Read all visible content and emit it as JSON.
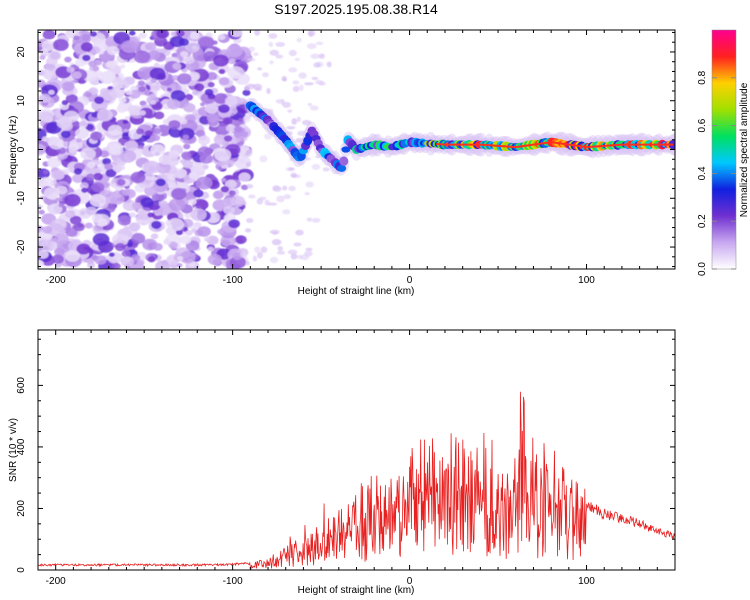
{
  "title": "S197.2025.195.08.38.R14",
  "chart_data": [
    {
      "type": "heatmap",
      "xlabel": "Height of straight line (km)",
      "ylabel": "Frequency (Hz)",
      "xlim": [
        -210,
        150
      ],
      "ylim": [
        -24.5,
        24.5
      ],
      "xticks": [
        -200,
        -100,
        0,
        100
      ],
      "yticks": [
        -20,
        -10,
        0,
        10,
        20
      ],
      "colorbar": {
        "label": "Normalized spectral amplitude",
        "range": [
          0,
          1
        ],
        "ticks": [
          "0.0",
          "0.2",
          "0.4",
          "0.6",
          "0.8"
        ],
        "colors": [
          "#ffffff",
          "#c8a8f0",
          "#7030d0",
          "#1020e0",
          "#00c8ff",
          "#00e060",
          "#a0e000",
          "#ffd000",
          "#ff2020",
          "#ff0090"
        ]
      },
      "features": [
        {
          "name": "noise",
          "x_range": [
            -210,
            -95
          ],
          "freq_range": [
            -24,
            24
          ]
        },
        {
          "name": "track",
          "points": [
            [
              -90,
              9
            ],
            [
              -80,
              6
            ],
            [
              -70,
              2
            ],
            [
              -62,
              -2
            ],
            [
              -55,
              4
            ],
            [
              -50,
              0
            ],
            [
              -44,
              -2
            ],
            [
              -38,
              -4
            ],
            [
              -35,
              2
            ],
            [
              -30,
              0
            ],
            [
              -20,
              1
            ],
            [
              -10,
              0.5
            ],
            [
              0,
              1.5
            ],
            [
              20,
              1
            ],
            [
              40,
              1
            ],
            [
              60,
              0.5
            ],
            [
              80,
              1.5
            ],
            [
              100,
              0.5
            ],
            [
              120,
              1
            ],
            [
              150,
              1
            ]
          ]
        }
      ]
    },
    {
      "type": "line",
      "xlabel": "Height of straight line (km)",
      "ylabel": "SNR (10 * v/v)",
      "xlim": [
        -210,
        150
      ],
      "ylim": [
        0,
        780
      ],
      "xticks": [
        -200,
        -100,
        0,
        100
      ],
      "yticks": [
        0,
        200,
        400,
        600
      ],
      "series": [
        {
          "color": "#e82020",
          "envelope": [
            [
              -210,
              20
            ],
            [
              -160,
              20
            ],
            [
              -110,
              20
            ],
            [
              -90,
              25
            ],
            [
              -80,
              40
            ],
            [
              -70,
              80
            ],
            [
              -60,
              120
            ],
            [
              -50,
              170
            ],
            [
              -40,
              210
            ],
            [
              -30,
              250
            ],
            [
              -20,
              280
            ],
            [
              -10,
              310
            ],
            [
              0,
              330
            ],
            [
              10,
              360
            ],
            [
              20,
              390
            ],
            [
              30,
              400
            ],
            [
              40,
              380
            ],
            [
              50,
              320
            ],
            [
              55,
              250
            ],
            [
              60,
              330
            ],
            [
              63,
              600
            ],
            [
              66,
              420
            ],
            [
              70,
              350
            ],
            [
              80,
              360
            ],
            [
              90,
              330
            ],
            [
              100,
              230
            ],
            [
              110,
              200
            ],
            [
              120,
              185
            ],
            [
              130,
              165
            ],
            [
              140,
              140
            ],
            [
              150,
              120
            ]
          ]
        }
      ]
    }
  ]
}
